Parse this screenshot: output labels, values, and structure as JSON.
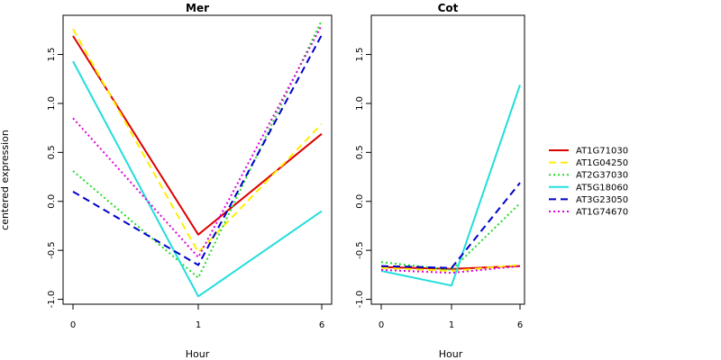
{
  "chart_data": [
    {
      "type": "line",
      "title": "Mer",
      "xlabel": "Hour",
      "ylabel": "centered expression",
      "categories": [
        "0",
        "1",
        "6"
      ],
      "ylim": [
        -1.05,
        1.9
      ],
      "yticks": [
        -1.0,
        -0.5,
        0.0,
        0.5,
        1.0,
        1.5
      ],
      "ytick_labels": [
        "-1.0",
        "-0.5",
        "0.0",
        "0.5",
        "1.0",
        "1.5"
      ],
      "grid": false,
      "series": [
        {
          "name": "AT1G71030",
          "color": "#dd0000",
          "dash": "solid",
          "values": [
            1.69,
            -0.34,
            0.69
          ]
        },
        {
          "name": "AT1G04250",
          "color": "#ffee00",
          "dash": "dashed",
          "values": [
            1.76,
            -0.52,
            0.79
          ]
        },
        {
          "name": "AT2G37030",
          "color": "#22dd22",
          "dash": "dotted",
          "values": [
            0.31,
            -0.78,
            1.85
          ]
        },
        {
          "name": "AT5G18060",
          "color": "#22dddd",
          "dash": "solid",
          "values": [
            1.43,
            -0.97,
            -0.1
          ]
        },
        {
          "name": "AT3G23050",
          "color": "#0000cc",
          "dash": "dashed",
          "values": [
            0.1,
            -0.65,
            1.7
          ]
        },
        {
          "name": "AT1G74670",
          "color": "#dd00dd",
          "dash": "dotted",
          "values": [
            0.85,
            -0.57,
            1.8
          ]
        }
      ]
    },
    {
      "type": "line",
      "title": "Cot",
      "xlabel": "Hour",
      "ylabel": "",
      "categories": [
        "0",
        "1",
        "6"
      ],
      "ylim": [
        -1.05,
        1.9
      ],
      "yticks": [
        -1.0,
        -0.5,
        0.0,
        0.5,
        1.0,
        1.5
      ],
      "ytick_labels": [
        "-1.0",
        "-0.5",
        "0.0",
        "0.5",
        "1.0",
        "1.5"
      ],
      "grid": false,
      "series": [
        {
          "name": "AT1G71030",
          "color": "#dd0000",
          "dash": "solid",
          "values": [
            -0.67,
            -0.69,
            -0.66
          ]
        },
        {
          "name": "AT1G04250",
          "color": "#ffee00",
          "dash": "dashed",
          "values": [
            -0.68,
            -0.71,
            -0.65
          ]
        },
        {
          "name": "AT2G37030",
          "color": "#22dd22",
          "dash": "dotted",
          "values": [
            -0.62,
            -0.7,
            -0.02
          ]
        },
        {
          "name": "AT5G18060",
          "color": "#22dddd",
          "dash": "solid",
          "values": [
            -0.71,
            -0.86,
            1.19
          ]
        },
        {
          "name": "AT3G23050",
          "color": "#0000cc",
          "dash": "dashed",
          "values": [
            -0.66,
            -0.68,
            0.19
          ]
        },
        {
          "name": "AT1G74670",
          "color": "#dd00dd",
          "dash": "dotted",
          "values": [
            -0.7,
            -0.73,
            -0.66
          ]
        }
      ]
    }
  ],
  "legend": {
    "placement": "right",
    "items": [
      {
        "name": "AT1G71030",
        "color": "#dd0000",
        "dash": "solid"
      },
      {
        "name": "AT1G04250",
        "color": "#ffee00",
        "dash": "dashed"
      },
      {
        "name": "AT2G37030",
        "color": "#22dd22",
        "dash": "dotted"
      },
      {
        "name": "AT5G18060",
        "color": "#22dddd",
        "dash": "solid"
      },
      {
        "name": "AT3G23050",
        "color": "#0000cc",
        "dash": "dashed"
      },
      {
        "name": "AT1G74670",
        "color": "#dd00dd",
        "dash": "dotted"
      }
    ]
  }
}
